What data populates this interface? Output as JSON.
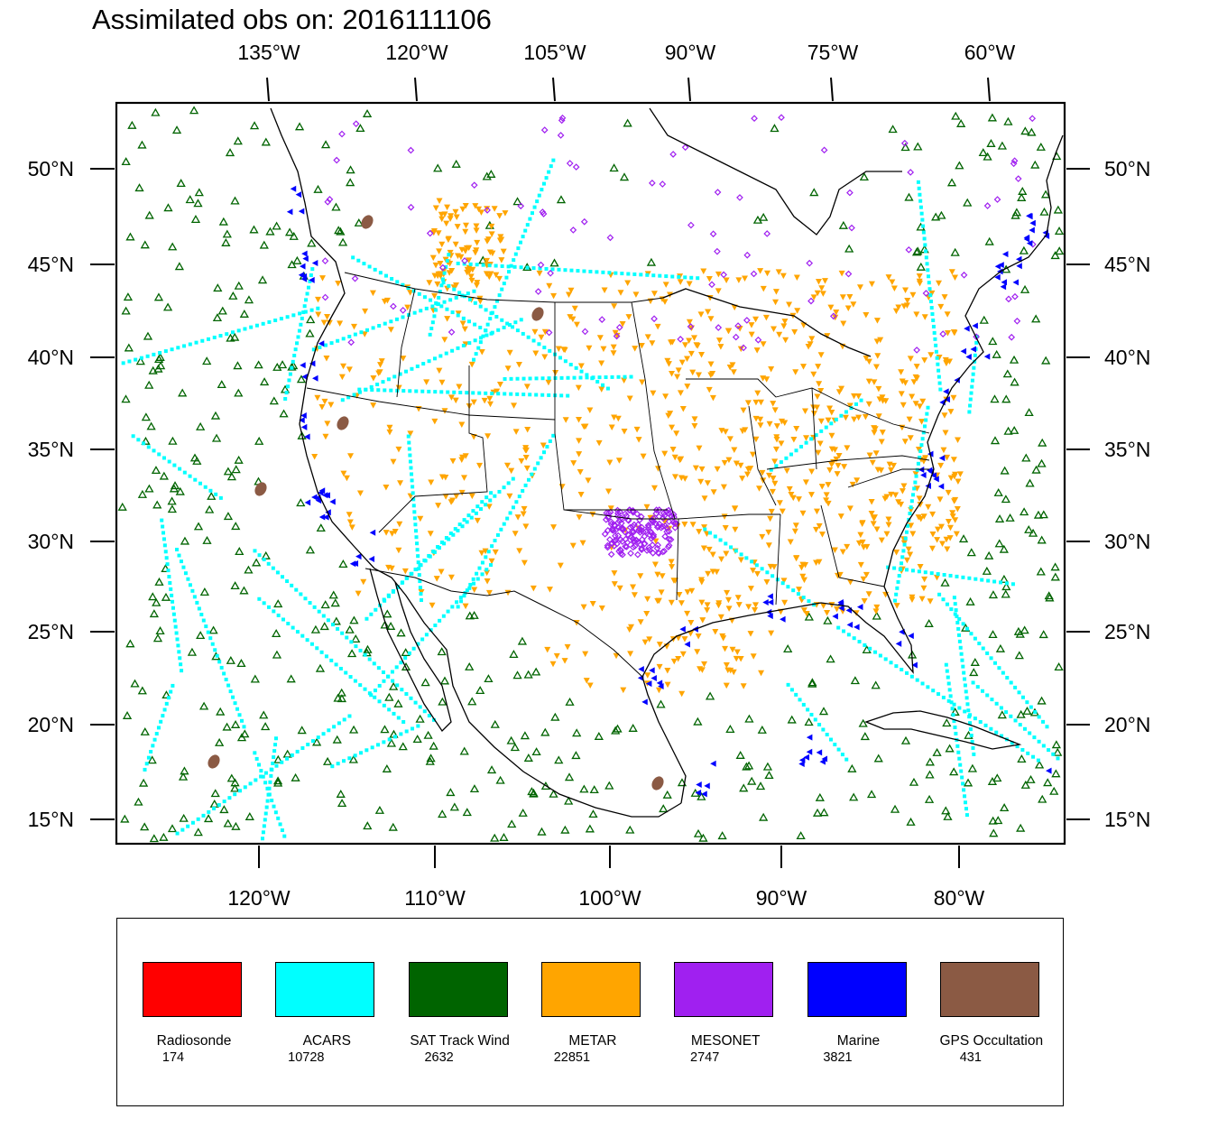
{
  "title": "Assimilated obs on: 2016111106",
  "colors": {
    "radiosonde": "#ff0000",
    "acars": "#00ffff",
    "sat_track_wind": "#006400",
    "metar": "#ffa500",
    "mesonet": "#a020f0",
    "marine": "#0000ff",
    "gps": "#8b5a44"
  },
  "axes": {
    "top_lon_labels": [
      "135°W",
      "120°W",
      "105°W",
      "90°W",
      "75°W",
      "60°W"
    ],
    "bottom_lon_labels": [
      "120°W",
      "110°W",
      "100°W",
      "90°W",
      "80°W"
    ],
    "lat_labels": [
      "50°N",
      "45°N",
      "40°N",
      "35°N",
      "30°N",
      "25°N",
      "20°N",
      "15°N"
    ]
  },
  "legend": [
    {
      "name": "Radiosonde",
      "count": "174",
      "color": "#ff0000"
    },
    {
      "name": "ACARS",
      "count": "10728",
      "color": "#00ffff"
    },
    {
      "name": "SAT Track Wind",
      "count": "2632",
      "color": "#006400"
    },
    {
      "name": "METAR",
      "count": "22851",
      "color": "#ffa500"
    },
    {
      "name": "MESONET",
      "count": "2747",
      "color": "#a020f0"
    },
    {
      "name": "Marine",
      "count": "3821",
      "color": "#0000ff"
    },
    {
      "name": "GPS Occultation",
      "count": "431",
      "color": "#8b5a44"
    }
  ]
}
